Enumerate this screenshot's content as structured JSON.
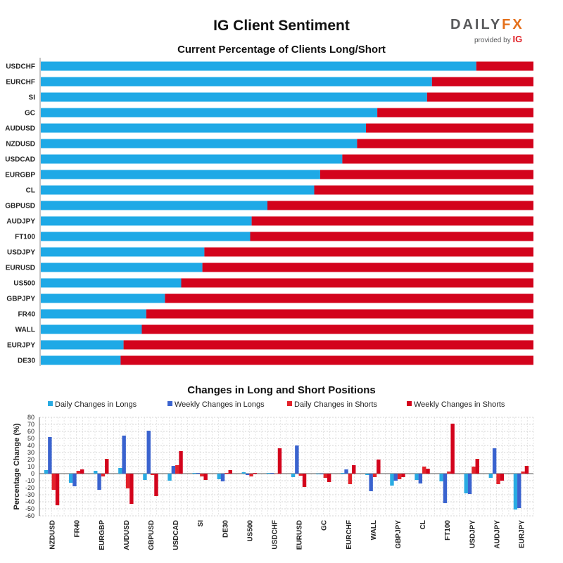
{
  "header": {
    "title": "IG Client Sentiment",
    "logo_word_a": "DAILY",
    "logo_word_b": "FX",
    "logo_sub": "provided by",
    "logo_ig": "IG"
  },
  "colors": {
    "long": "#1ea9e6",
    "short": "#d3031c",
    "daily_long": "#29abe2",
    "weekly_long": "#3a63cf",
    "daily_short": "#e3232b",
    "weekly_short": "#d3031c"
  },
  "chart_data": [
    {
      "type": "bar",
      "orientation": "horizontal",
      "stacked": true,
      "title": "Current Percentage of Clients Long/Short",
      "categories": [
        "USDCHF",
        "EURCHF",
        "SI",
        "GC",
        "AUDUSD",
        "NZDUSD",
        "USDCAD",
        "EURGBP",
        "CL",
        "GBPUSD",
        "AUDJPY",
        "FT100",
        "USDJPY",
        "EURUSD",
        "US500",
        "GBPJPY",
        "FR40",
        "WALL",
        "EURJPY",
        "DE30"
      ],
      "series": [
        {
          "values": [
            88.4,
            79.4,
            78.4,
            68.3,
            66.0,
            64.2,
            61.2,
            56.7,
            55.5,
            46.0,
            42.8,
            42.5,
            33.2,
            32.8,
            28.5,
            25.2,
            21.4,
            20.5,
            16.8,
            16.2
          ]
        },
        {
          "values": [
            11.6,
            20.6,
            21.6,
            31.7,
            34.0,
            35.8,
            38.8,
            43.3,
            44.5,
            54.0,
            57.2,
            57.5,
            66.8,
            67.2,
            71.5,
            74.8,
            78.6,
            79.5,
            83.2,
            83.8
          ]
        }
      ],
      "xlim": [
        0,
        100
      ]
    },
    {
      "type": "bar",
      "title": "Changes in Long and Short Positions",
      "ylabel": "Percentage Change (%)",
      "ylim": [
        -60,
        80
      ],
      "yticks": [
        -60,
        -50,
        -40,
        -30,
        -20,
        -10,
        0,
        10,
        20,
        30,
        40,
        50,
        60,
        70,
        80
      ],
      "grid": true,
      "legend": "top",
      "categories": [
        "NZDUSD",
        "FR40",
        "EURGBP",
        "AUDUSD",
        "GBPUSD",
        "USDCAD",
        "SI",
        "DE30",
        "US500",
        "USDCHF",
        "EURUSD",
        "GC",
        "EURCHF",
        "WALL",
        "GBPJPY",
        "CL",
        "FT100",
        "USDJPY",
        "AUDJPY",
        "EURJPY"
      ],
      "series": [
        {
          "name": "Daily Changes in Longs",
          "values": [
            5,
            -13,
            4,
            8,
            -9,
            -10,
            1,
            -8,
            2,
            1,
            -5,
            -1,
            1,
            -2,
            -17,
            -9,
            -11,
            -28,
            -6,
            -51
          ]
        },
        {
          "name": "Weekly Changes in Longs",
          "values": [
            52,
            -18,
            -23,
            54,
            61,
            11,
            1,
            -11,
            -2,
            1,
            40,
            -1,
            6,
            -25,
            -10,
            -14,
            -42,
            -29,
            36,
            -49
          ]
        },
        {
          "name": "Daily Changes in Shorts",
          "values": [
            -23,
            4,
            -4,
            -21,
            -2,
            12,
            -4,
            1,
            -4,
            0,
            -3,
            -6,
            -15,
            -5,
            -8,
            10,
            3,
            10,
            -15,
            3
          ]
        },
        {
          "name": "Weekly Changes in Shorts",
          "values": [
            -45,
            6,
            21,
            -43,
            -32,
            32,
            -9,
            5,
            1,
            36,
            -19,
            -12,
            12,
            20,
            -5,
            7,
            71,
            21,
            -10,
            11
          ]
        }
      ]
    }
  ]
}
